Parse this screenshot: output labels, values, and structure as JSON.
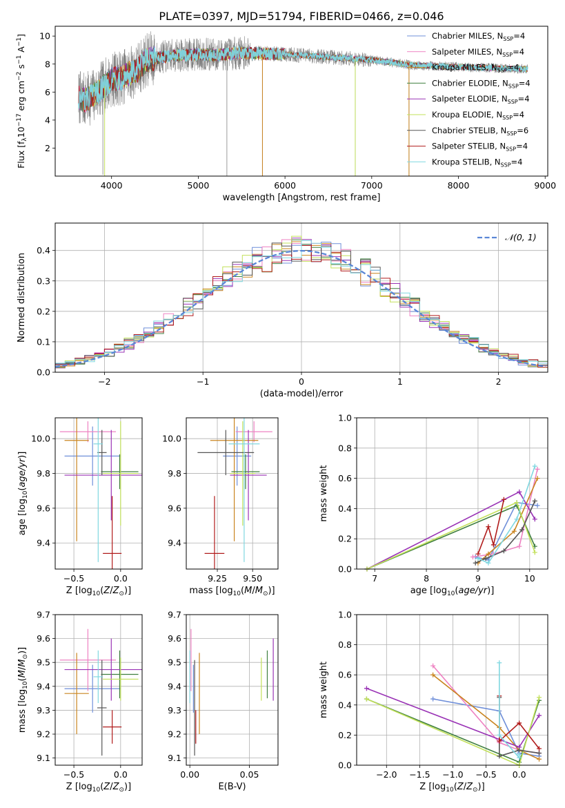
{
  "figure_title": "PLATE=0397, MJD=51794, FIBERID=0466, z=0.046",
  "colors": {
    "Chabrier MILES": "#6f8fd9",
    "Salpeter MILES": "#ee82c2",
    "Kroupa MILES": "#c9841f",
    "Chabrier ELODIE": "#3f7f3f",
    "Salpeter ELODIE": "#9932b5",
    "Kroupa ELODIE": "#c2e05a",
    "Chabrier STELIB": "#555555",
    "Salpeter STELIB": "#b01a1a",
    "Kroupa STELIB": "#7fd7e0",
    "observed": "#808080",
    "gaussian": "#5a86d6"
  },
  "chart_data": [
    {
      "id": "spectrum",
      "type": "line",
      "title": "PLATE=0397, MJD=51794, FIBERID=0466, z=0.046",
      "xlabel": "wavelength [Angstrom, rest frame]",
      "ylabel": "Flux [f_λ 10^-17 erg cm^-2 s^-1 A^-1]",
      "xlim": [
        3350,
        9030
      ],
      "ylim": [
        0,
        10.7
      ],
      "xticks": [
        "4000",
        "5000",
        "6000",
        "7000",
        "8000",
        "9000"
      ],
      "yticks": [
        "2",
        "4",
        "6",
        "8",
        "10"
      ],
      "grid": false,
      "legend_position": "top-right",
      "legend": [
        {
          "label": "Chabrier MILES, N",
          "sub": "SSP",
          "suffix": "=4"
        },
        {
          "label": "Salpeter MILES, N",
          "sub": "SSP",
          "suffix": "=4"
        },
        {
          "label": "Kroupa MILES, N",
          "sub": "SSP",
          "suffix": "=4"
        },
        {
          "label": "Chabrier ELODIE, N",
          "sub": "SSP",
          "suffix": "=4"
        },
        {
          "label": "Salpeter ELODIE, N",
          "sub": "SSP",
          "suffix": "=4"
        },
        {
          "label": "Kroupa ELODIE, N",
          "sub": "SSP",
          "suffix": "=4"
        },
        {
          "label": "Chabrier STELIB, N",
          "sub": "SSP",
          "suffix": "=6"
        },
        {
          "label": "Salpeter STELIB, N",
          "sub": "SSP",
          "suffix": "=4"
        },
        {
          "label": "Kroupa STELIB, N",
          "sub": "SSP",
          "suffix": "=4"
        }
      ],
      "continuum_points": [
        [
          3620,
          5.6
        ],
        [
          3700,
          5.4
        ],
        [
          3800,
          5.8
        ],
        [
          3900,
          6.3
        ],
        [
          4000,
          6.9
        ],
        [
          4100,
          7.0
        ],
        [
          4200,
          7.3
        ],
        [
          4300,
          7.6
        ],
        [
          4400,
          8.3
        ],
        [
          4500,
          8.4
        ],
        [
          4700,
          8.6
        ],
        [
          5000,
          8.7
        ],
        [
          5200,
          8.65
        ],
        [
          5500,
          8.8
        ],
        [
          6000,
          8.7
        ],
        [
          6500,
          8.5
        ],
        [
          7000,
          8.3
        ],
        [
          7500,
          7.9
        ],
        [
          8000,
          7.8
        ],
        [
          8500,
          7.7
        ],
        [
          8800,
          7.65
        ]
      ],
      "absorption_spikes": [
        [
          3900,
          0.1
        ],
        [
          5330,
          0
        ],
        [
          5740,
          0
        ],
        [
          6810,
          0
        ],
        [
          7430,
          0
        ]
      ]
    },
    {
      "id": "residuals",
      "type": "histogram",
      "xlabel": "(data-model)/error",
      "ylabel": "Normed distribution",
      "xlim": [
        -2.5,
        2.5
      ],
      "ylim": [
        0,
        0.49
      ],
      "xticks": [
        "−2",
        "−1",
        "0",
        "1",
        "2"
      ],
      "yticks": [
        "0.0",
        "0.1",
        "0.2",
        "0.3",
        "0.4"
      ],
      "grid": true,
      "legend_position": "top-right",
      "legend": [
        {
          "label": "𝒩(0, 1)"
        }
      ],
      "bin_width": 0.1,
      "reference_curve": "gaussian mean 0, sigma 1"
    },
    {
      "id": "age-vs-Z",
      "type": "errorbar",
      "xlabel": "Z [log10(Z/Z⊙)]",
      "ylabel": "age  [log10(age/yr)]",
      "xlim": [
        -0.7,
        0.23
      ],
      "ylim": [
        9.25,
        10.12
      ],
      "xticks": [
        "−0.5",
        "0.0"
      ],
      "yticks": [
        "9.4",
        "9.6",
        "9.8",
        "10.0"
      ],
      "grid": true,
      "points": [
        {
          "series": "Chabrier MILES",
          "x": -0.3,
          "xerr": 0.3,
          "y": 9.9,
          "yerr": 0.17
        },
        {
          "series": "Salpeter MILES",
          "x": -0.35,
          "xerr": 0.3,
          "y": 10.04,
          "yerr": 0.06
        },
        {
          "series": "Kroupa MILES",
          "x": -0.47,
          "xerr": 0.13,
          "y": 9.99,
          "yerr": 0.58
        },
        {
          "series": "Chabrier ELODIE",
          "x": -0.01,
          "xerr": 0.2,
          "y": 9.81,
          "yerr": 0.1
        },
        {
          "series": "Salpeter ELODIE",
          "x": -0.1,
          "xerr": 0.5,
          "y": 9.79,
          "yerr": 0.26
        },
        {
          "series": "Kroupa ELODIE",
          "x": 0.0,
          "xerr": 0.19,
          "y": 9.8,
          "yerr": 0.3
        },
        {
          "series": "Chabrier STELIB",
          "x": -0.2,
          "xerr": 0.05,
          "y": 9.92,
          "yerr": 0.13
        },
        {
          "series": "Salpeter STELIB",
          "x": -0.09,
          "xerr": 0.1,
          "y": 9.34,
          "yerr": 0.33
        },
        {
          "series": "Kroupa STELIB",
          "x": -0.24,
          "xerr": 0.05,
          "y": 9.97,
          "yerr": 0.68
        }
      ]
    },
    {
      "id": "age-vs-mass",
      "type": "errorbar",
      "xlabel": "mass [log10(M/M⊙)]",
      "ylabel": "",
      "xlim": [
        9.03,
        9.68
      ],
      "ylim": [
        9.25,
        10.12
      ],
      "xticks": [
        "9.25",
        "9.50"
      ],
      "yticks": [
        "9.4",
        "9.6",
        "9.8",
        "10.0"
      ],
      "grid": true,
      "points": [
        {
          "series": "Chabrier MILES",
          "x": 9.39,
          "xerr": 0.1,
          "y": 9.9,
          "yerr": 0.17
        },
        {
          "series": "Salpeter MILES",
          "x": 9.51,
          "xerr": 0.13,
          "y": 10.04,
          "yerr": 0.06
        },
        {
          "series": "Kroupa MILES",
          "x": 9.37,
          "xerr": 0.17,
          "y": 9.99,
          "yerr": 0.58
        },
        {
          "series": "Chabrier ELODIE",
          "x": 9.45,
          "xerr": 0.1,
          "y": 9.81,
          "yerr": 0.1
        },
        {
          "series": "Salpeter ELODIE",
          "x": 9.47,
          "xerr": 0.13,
          "y": 9.79,
          "yerr": 0.26
        },
        {
          "series": "Kroupa ELODIE",
          "x": 9.43,
          "xerr": 0.09,
          "y": 9.8,
          "yerr": 0.3
        },
        {
          "series": "Chabrier STELIB",
          "x": 9.31,
          "xerr": 0.2,
          "y": 9.92,
          "yerr": 0.13
        },
        {
          "series": "Salpeter STELIB",
          "x": 9.23,
          "xerr": 0.07,
          "y": 9.34,
          "yerr": 0.33
        },
        {
          "series": "Kroupa STELIB",
          "x": 9.44,
          "xerr": 0.11,
          "y": 9.97,
          "yerr": 0.68
        }
      ]
    },
    {
      "id": "massweight-vs-age",
      "type": "line",
      "xlabel": "age  [log10(age/yr)]",
      "ylabel": "mass weight",
      "xlim": [
        6.65,
        10.35
      ],
      "ylim": [
        0,
        1
      ],
      "xticks": [
        "7",
        "8",
        "9",
        "10"
      ],
      "yticks": [
        "0.0",
        "0.2",
        "0.4",
        "0.6",
        "0.8",
        "1.0"
      ],
      "grid": true,
      "series": [
        {
          "name": "Chabrier MILES",
          "x": [
            8.95,
            9.2,
            9.75,
            10.15
          ],
          "y": [
            0.08,
            0.06,
            0.44,
            0.42
          ]
        },
        {
          "name": "Salpeter MILES",
          "x": [
            8.9,
            9.3,
            9.8,
            10.15
          ],
          "y": [
            0.08,
            0.1,
            0.15,
            0.66
          ]
        },
        {
          "name": "Kroupa MILES",
          "x": [
            9.0,
            9.2,
            9.7,
            10.15
          ],
          "y": [
            0.04,
            0.1,
            0.25,
            0.6
          ]
        },
        {
          "name": "Chabrier ELODIE",
          "x": [
            6.85,
            9.75,
            10.1
          ],
          "y": [
            0.0,
            0.42,
            0.15
          ]
        },
        {
          "name": "Salpeter ELODIE",
          "x": [
            6.85,
            9.8,
            10.1
          ],
          "y": [
            0.0,
            0.51,
            0.33
          ]
        },
        {
          "name": "Kroupa ELODIE",
          "x": [
            6.85,
            9.75,
            10.1
          ],
          "y": [
            0.0,
            0.44,
            0.11
          ]
        },
        {
          "name": "Chabrier STELIB",
          "x": [
            8.95,
            9.15,
            9.5,
            9.85,
            10.1
          ],
          "y": [
            0.04,
            0.07,
            0.12,
            0.26,
            0.45
          ]
        },
        {
          "name": "Salpeter STELIB",
          "x": [
            9.0,
            9.2,
            9.3,
            9.5
          ],
          "y": [
            0.1,
            0.28,
            0.16,
            0.46
          ]
        },
        {
          "name": "Kroupa STELIB",
          "x": [
            9.0,
            9.2,
            9.75,
            10.1
          ],
          "y": [
            0.07,
            0.04,
            0.33,
            0.68
          ]
        }
      ]
    },
    {
      "id": "mass-vs-Z",
      "type": "errorbar",
      "xlabel": "Z [log10(Z/Z⊙)]",
      "ylabel": "mass [log10(M/M⊙)]",
      "xlim": [
        -0.7,
        0.23
      ],
      "ylim": [
        9.07,
        9.7
      ],
      "xticks": [
        "−0.5",
        "0.0"
      ],
      "yticks": [
        "9.1",
        "9.2",
        "9.3",
        "9.4",
        "9.5",
        "9.6",
        "9.7"
      ],
      "grid": true,
      "points": [
        {
          "series": "Chabrier MILES",
          "x": -0.3,
          "xerr": 0.3,
          "y": 9.39,
          "yerr": 0.1
        },
        {
          "series": "Salpeter MILES",
          "x": -0.35,
          "xerr": 0.3,
          "y": 9.51,
          "yerr": 0.13
        },
        {
          "series": "Kroupa MILES",
          "x": -0.47,
          "xerr": 0.13,
          "y": 9.37,
          "yerr": 0.17
        },
        {
          "series": "Chabrier ELODIE",
          "x": -0.01,
          "xerr": 0.2,
          "y": 9.45,
          "yerr": 0.1
        },
        {
          "series": "Salpeter ELODIE",
          "x": -0.1,
          "xerr": 0.5,
          "y": 9.47,
          "yerr": 0.13
        },
        {
          "series": "Kroupa ELODIE",
          "x": 0.0,
          "xerr": 0.19,
          "y": 9.43,
          "yerr": 0.09
        },
        {
          "series": "Chabrier STELIB",
          "x": -0.2,
          "xerr": 0.05,
          "y": 9.31,
          "yerr": 0.2
        },
        {
          "series": "Salpeter STELIB",
          "x": -0.09,
          "xerr": 0.1,
          "y": 9.23,
          "yerr": 0.07
        },
        {
          "series": "Kroupa STELIB",
          "x": -0.24,
          "xerr": 0.05,
          "y": 9.44,
          "yerr": 0.11
        }
      ]
    },
    {
      "id": "mass-vs-EBV",
      "type": "errorbar",
      "xlabel": "E(B-V)",
      "ylabel": "",
      "xlim": [
        -0.003,
        0.074
      ],
      "ylim": [
        9.07,
        9.7
      ],
      "xticks": [
        "0.00",
        "0.05"
      ],
      "yticks": [
        "9.1",
        "9.2",
        "9.3",
        "9.4",
        "9.5",
        "9.6",
        "9.7"
      ],
      "grid": true,
      "points": [
        {
          "series": "Chabrier MILES",
          "x": 0.003,
          "xerr": 0,
          "y": 9.39,
          "yerr": 0.1
        },
        {
          "series": "Salpeter MILES",
          "x": 0.001,
          "xerr": 0,
          "y": 9.51,
          "yerr": 0.13
        },
        {
          "series": "Kroupa MILES",
          "x": 0.008,
          "xerr": 0,
          "y": 9.37,
          "yerr": 0.17
        },
        {
          "series": "Chabrier ELODIE",
          "x": 0.065,
          "xerr": 0,
          "y": 9.45,
          "yerr": 0.1
        },
        {
          "series": "Salpeter ELODIE",
          "x": 0.07,
          "xerr": 0,
          "y": 9.47,
          "yerr": 0.13
        },
        {
          "series": "Kroupa ELODIE",
          "x": 0.06,
          "xerr": 0,
          "y": 9.43,
          "yerr": 0.09
        },
        {
          "series": "Chabrier STELIB",
          "x": 0.004,
          "xerr": 0,
          "y": 9.31,
          "yerr": 0.2
        },
        {
          "series": "Salpeter STELIB",
          "x": 0.005,
          "xerr": 0,
          "y": 9.23,
          "yerr": 0.07
        },
        {
          "series": "Kroupa STELIB",
          "x": 0.0,
          "xerr": 0,
          "y": 9.44,
          "yerr": 0.11
        }
      ]
    },
    {
      "id": "massweight-vs-Z",
      "type": "line",
      "xlabel": "Z [log10(Z/Z⊙)]",
      "ylabel": "mass weight",
      "xlim": [
        -2.45,
        0.43
      ],
      "ylim": [
        0,
        1
      ],
      "xticks": [
        "−2.0",
        "−1.5",
        "−1.0",
        "−0.5",
        "0.0"
      ],
      "yticks": [
        "0.0",
        "0.2",
        "0.4",
        "0.6",
        "0.8",
        "1.0"
      ],
      "grid": true,
      "series": [
        {
          "name": "Chabrier MILES",
          "x": [
            -1.3,
            -0.3,
            0.0,
            0.3
          ],
          "y": [
            0.44,
            0.36,
            0.08,
            0.06
          ]
        },
        {
          "name": "Salpeter MILES",
          "x": [
            -1.3,
            -0.3,
            0.0,
            0.3
          ],
          "y": [
            0.66,
            0.15,
            0.1,
            0.08
          ]
        },
        {
          "name": "Kroupa MILES",
          "x": [
            -1.3,
            -0.3,
            0.0,
            0.3
          ],
          "y": [
            0.6,
            0.25,
            0.1,
            0.04
          ]
        },
        {
          "name": "Chabrier ELODIE",
          "x": [
            -2.3,
            0.0,
            0.3
          ],
          "y": [
            0.44,
            0.02,
            0.43
          ]
        },
        {
          "name": "Salpeter ELODIE",
          "x": [
            -2.3,
            0.0,
            0.3
          ],
          "y": [
            0.51,
            0.12,
            0.33
          ]
        },
        {
          "name": "Kroupa ELODIE",
          "x": [
            -2.3,
            0.0,
            0.3
          ],
          "y": [
            0.44,
            0.0,
            0.45
          ]
        },
        {
          "name": "Chabrier STELIB",
          "x": [
            -0.3,
            -0.3,
            0.0,
            0.3
          ],
          "y": [
            0.45,
            0.06,
            0.1,
            0.08
          ]
        },
        {
          "name": "Salpeter STELIB",
          "x": [
            -0.3,
            -0.3,
            0.0,
            0.3
          ],
          "y": [
            0.46,
            0.16,
            0.28,
            0.11
          ]
        },
        {
          "name": "Kroupa STELIB",
          "x": [
            -0.3,
            -0.3,
            0.0,
            0.0
          ],
          "y": [
            0.68,
            0.2,
            0.05,
            0.07
          ]
        }
      ]
    }
  ]
}
